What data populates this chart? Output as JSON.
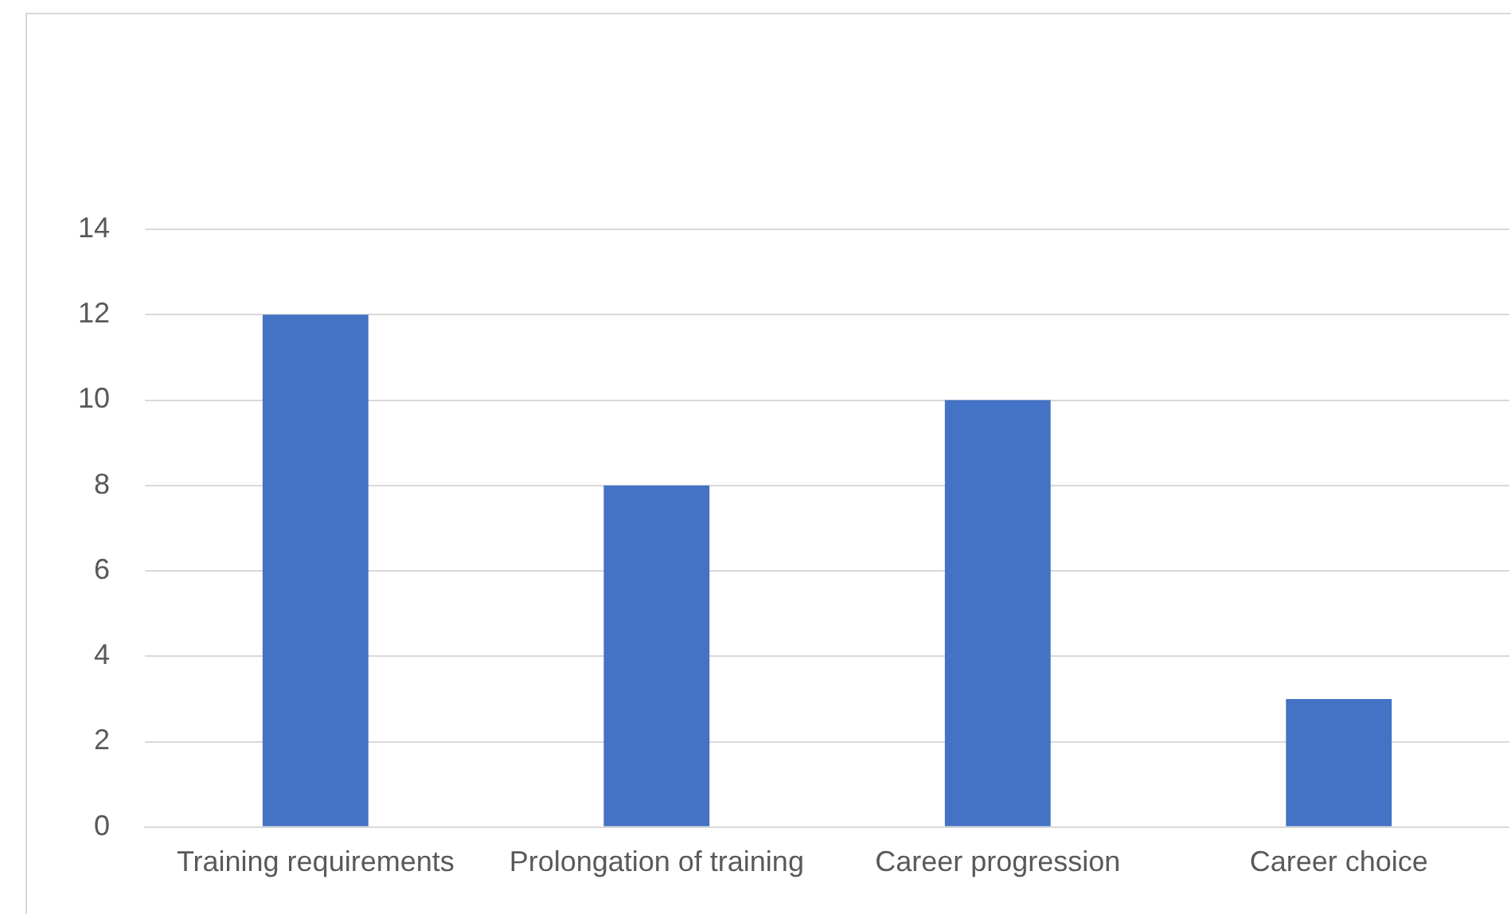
{
  "chart_data": {
    "type": "bar",
    "categories": [
      "Training requirements",
      "Prolongation of training",
      "Career progression",
      "Career choice"
    ],
    "values": [
      12,
      8,
      10,
      3
    ],
    "color": "#4472c4",
    "ylim": [
      0,
      14
    ],
    "yticks": [
      0,
      2,
      4,
      6,
      8,
      10,
      12,
      14
    ],
    "grid": "y"
  }
}
